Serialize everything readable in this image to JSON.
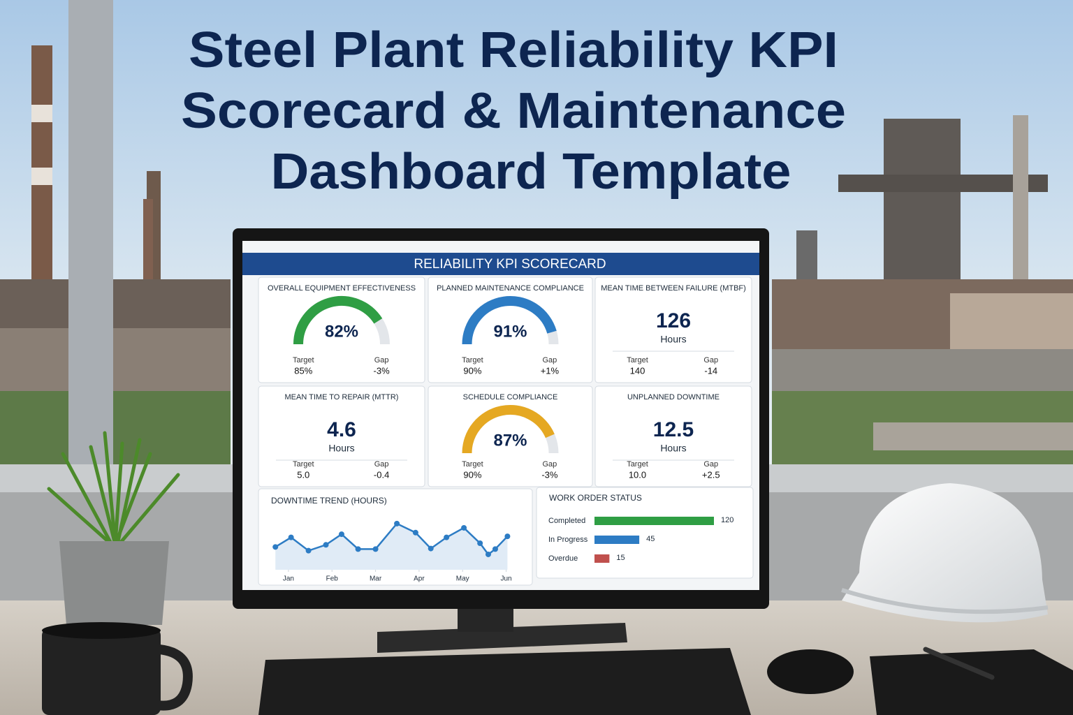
{
  "title_lines": [
    "Steel Plant Reliability KPI",
    "Scorecard & Maintenance",
    "Dashboard Template"
  ],
  "dashboard": {
    "header": "RELIABILITY KPI SCORECARD",
    "kpis": [
      {
        "title": "OVERALL EQUIPMENT EFFECTIVENESS",
        "kind": "gauge",
        "value": 82,
        "value_label": "82%",
        "range": [
          0,
          100
        ],
        "color": "#2f9e44",
        "target_label": "Target",
        "target": "85%",
        "gap_label": "Gap",
        "gap": "-3%"
      },
      {
        "title": "PLANNED MAINTENANCE COMPLIANCE",
        "kind": "gauge",
        "value": 91,
        "value_label": "91%",
        "range": [
          0,
          100
        ],
        "color": "#2d7cc4",
        "target_label": "Target",
        "target": "90%",
        "gap_label": "Gap",
        "gap": "+1%"
      },
      {
        "title": "MEAN TIME BETWEEN FAILURE (MTBF)",
        "kind": "number",
        "value_label": "126",
        "unit": "Hours",
        "target_label": "Target",
        "target": "140",
        "gap_label": "Gap",
        "gap": "-14"
      },
      {
        "title": "MEAN TIME TO REPAIR (MTTR)",
        "kind": "number",
        "value_label": "4.6",
        "unit": "Hours",
        "target_label": "Target",
        "target": "5.0",
        "gap_label": "Gap",
        "gap": "-0.4"
      },
      {
        "title": "SCHEDULE COMPLIANCE",
        "kind": "gauge",
        "value": 87,
        "value_label": "87%",
        "range": [
          0,
          100
        ],
        "color": "#e5a822",
        "target_label": "Target",
        "target": "90%",
        "gap_label": "Gap",
        "gap": "-3%"
      },
      {
        "title": "UNPLANNED DOWNTIME",
        "kind": "number",
        "value_label": "12.5",
        "unit": "Hours",
        "target_label": "Target",
        "target": "10.0",
        "gap_label": "Gap",
        "gap": "+2.5"
      }
    ],
    "downtime_trend": {
      "type": "line",
      "title": "DOWNTIME TREND (HOURS)",
      "color": "#2d7cc4",
      "x": [
        -0.3,
        0.06,
        0.46,
        0.86,
        1.22,
        1.6,
        2.0,
        2.49,
        2.92,
        3.27,
        3.63,
        4.03,
        4.4,
        4.59,
        4.75,
        5.03
      ],
      "values": [
        4.3,
        6.1,
        3.6,
        4.7,
        6.7,
        3.9,
        3.9,
        8.7,
        7.0,
        4.0,
        6.1,
        7.9,
        5.0,
        2.9,
        3.9,
        6.3
      ],
      "xlim": [
        -0.4,
        5.2
      ],
      "ylim": [
        0,
        10
      ],
      "xticks": [
        {
          "value": 0,
          "label": "Jan"
        },
        {
          "value": 1,
          "label": "Feb"
        },
        {
          "value": 2,
          "label": "Mar"
        },
        {
          "value": 3,
          "label": "Apr"
        },
        {
          "value": 4,
          "label": "May"
        },
        {
          "value": 5,
          "label": "Jun"
        }
      ]
    },
    "work_orders": {
      "type": "bar",
      "title": "WORK ORDER STATUS",
      "categories": [
        "Completed",
        "In Progress",
        "Overdue"
      ],
      "values": [
        120,
        45,
        15
      ],
      "colors": [
        "#2f9e44",
        "#2d7cc4",
        "#c0504d"
      ],
      "xlim": [
        0,
        120
      ]
    }
  }
}
